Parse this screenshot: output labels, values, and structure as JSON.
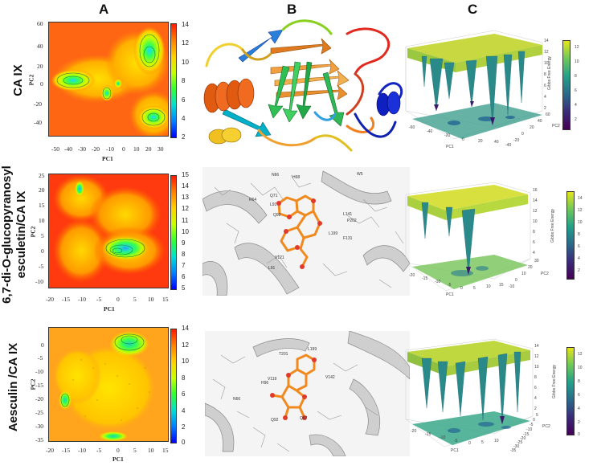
{
  "columns": [
    "A",
    "B",
    "C"
  ],
  "rows": [
    {
      "label_lines": [
        "CA IX"
      ]
    },
    {
      "label_lines": [
        "6,7-di-O-glucopyranosyl",
        "esculetin/CA IX"
      ]
    },
    {
      "label_lines": [
        "Aesculin /CA IX"
      ]
    }
  ],
  "fel_plots": [
    {
      "xlabel": "PC1",
      "ylabel": "PC2",
      "xticks": [
        "-50",
        "-40",
        "-30",
        "-20",
        "-10",
        "0",
        "10",
        "20",
        "30"
      ],
      "yticks": [
        "60",
        "40",
        "20",
        "0",
        "-20",
        "-40"
      ],
      "cbar_ticks": [
        "14",
        "12",
        "10",
        "8",
        "6",
        "4",
        "2"
      ],
      "gradient": [
        "#ff1a00",
        "#ff8000",
        "#ffd000",
        "#c8ff00",
        "#33ff33",
        "#00e0d0",
        "#0080ff",
        "#0000ff"
      ]
    },
    {
      "xlabel": "PC1",
      "ylabel": "PC2",
      "xticks": [
        "-20",
        "-15",
        "-10",
        "-5",
        "0",
        "5",
        "10",
        "15"
      ],
      "yticks": [
        "25",
        "20",
        "15",
        "10",
        "5",
        "0",
        "-5",
        "-10"
      ],
      "cbar_ticks": [
        "15",
        "14",
        "13",
        "12",
        "11",
        "10",
        "9",
        "8",
        "7",
        "6",
        "5"
      ],
      "gradient": [
        "#ff1a00",
        "#ff8000",
        "#ffd000",
        "#c8ff00",
        "#33ff33",
        "#00e0d0",
        "#0080ff",
        "#0000ff"
      ]
    },
    {
      "xlabel": "PC1",
      "ylabel": "PC2",
      "xticks": [
        "-20",
        "-15",
        "-10",
        "-5",
        "0",
        "5",
        "10",
        "15"
      ],
      "yticks": [
        "0",
        "-5",
        "-10",
        "-15",
        "-20",
        "-25",
        "-30",
        "-35"
      ],
      "cbar_ticks": [
        "14",
        "12",
        "10",
        "8",
        "6",
        "4",
        "2",
        "0"
      ],
      "gradient": [
        "#ff1a00",
        "#ff8000",
        "#ffd000",
        "#c8ff00",
        "#33ff33",
        "#00e0d0",
        "#0080ff",
        "#0000ff"
      ]
    }
  ],
  "surface_plots": [
    {
      "zlabel": "Gibbs Free Energy",
      "xlabel": "PC1",
      "ylabel": "PC2",
      "zticks": [
        "14",
        "12",
        "10",
        "8",
        "6",
        "4",
        "2"
      ],
      "xticks": [
        "-60",
        "-40",
        "-20",
        "0",
        "20",
        "40"
      ],
      "yticks": [
        "60",
        "40",
        "20",
        "0",
        "-20",
        "-40"
      ],
      "cbar_ticks": [
        "12",
        "10",
        "8",
        "6",
        "4",
        "2"
      ]
    },
    {
      "zlabel": "Gibbs Free Energy",
      "xlabel": "PC1",
      "ylabel": "PC2",
      "zticks": [
        "16",
        "14",
        "12",
        "10",
        "8",
        "6",
        "4"
      ],
      "xticks": [
        "-20",
        "-15",
        "-10",
        "-5",
        "0",
        "5",
        "10",
        "15"
      ],
      "yticks": [
        "30",
        "20",
        "10",
        "0",
        "-10"
      ],
      "cbar_ticks": [
        "14",
        "12",
        "10",
        "8",
        "6",
        "4",
        "2"
      ]
    },
    {
      "zlabel": "Gibbs Free Energy",
      "xlabel": "PC1",
      "ylabel": "PC2",
      "zticks": [
        "14",
        "12",
        "10",
        "8",
        "6",
        "4",
        "2"
      ],
      "xticks": [
        "-20",
        "-15",
        "-10",
        "-5",
        "0",
        "5",
        "10"
      ],
      "yticks": [
        "5",
        "0",
        "-5",
        "-10",
        "-15",
        "-20",
        "-25",
        "-30",
        "-35"
      ],
      "cbar_ticks": [
        "12",
        "10",
        "8",
        "6",
        "4",
        "2",
        "0"
      ]
    }
  ],
  "residue_labels": [
    [
      "N66",
      "H68",
      "W5",
      "R64",
      "Q71",
      "L91",
      "L141",
      "Q92",
      "P202",
      "F131",
      "L199",
      "V121",
      "L91"
    ],
    [
      "L199",
      "T201",
      "V119",
      "V142",
      "H96",
      "N66",
      "Q92",
      "Q67"
    ]
  ],
  "colors": {
    "surface_high": "#dfe84a",
    "surface_mid": "#27a88a",
    "surface_low": "#3b1f6e",
    "ligand": "#f08a1f",
    "ligand_oxygen": "#e23a2a",
    "protein_gray": "#bdbdbd",
    "fel_contour": "#1a7a3a"
  }
}
